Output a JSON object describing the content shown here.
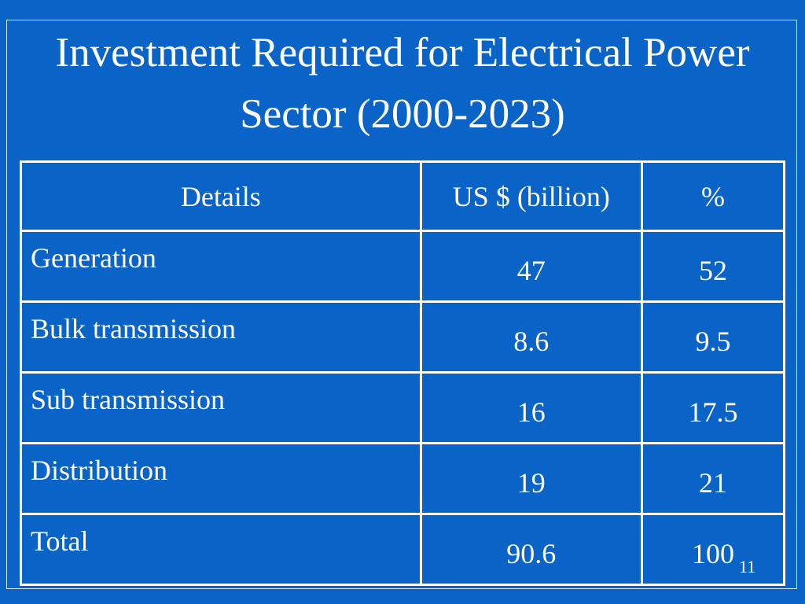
{
  "title": "Investment Required for Electrical Power Sector (2000-2023)",
  "table": {
    "header": [
      "Details",
      "US $ (billion)",
      "%"
    ],
    "rows": [
      [
        "Generation",
        47,
        52
      ],
      [
        "Bulk transmission",
        8.6,
        9.5
      ],
      [
        "Sub transmission",
        16,
        17.5
      ],
      [
        "Distribution",
        19,
        21
      ],
      [
        "Total",
        90.6,
        100
      ]
    ]
  },
  "page_number": "11"
}
